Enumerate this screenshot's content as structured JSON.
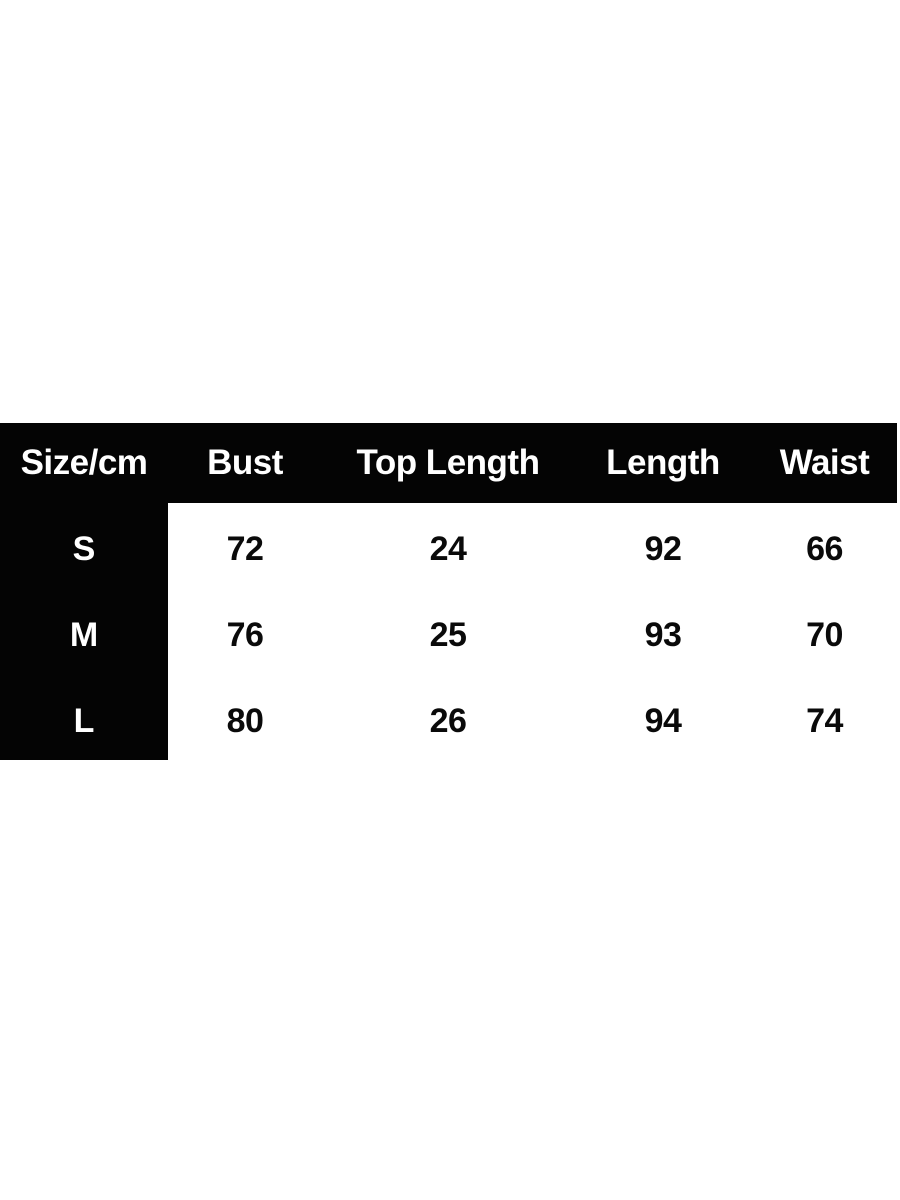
{
  "chart_data": {
    "type": "table",
    "columns": [
      "Size/cm",
      "Bust",
      "Top Length",
      "Length",
      "Waist"
    ],
    "rows": [
      {
        "label": "S",
        "values": [
          72,
          24,
          92,
          66
        ]
      },
      {
        "label": "M",
        "values": [
          76,
          25,
          93,
          70
        ]
      },
      {
        "label": "L",
        "values": [
          80,
          26,
          94,
          74
        ]
      }
    ],
    "unit_note": "cm",
    "layout": {
      "header_position": "top",
      "row_label_column": "left",
      "gridlines": "off"
    }
  },
  "colors": {
    "header_bg": "#040404",
    "header_text": "#ffffff",
    "cell_text": "#0a0a0a",
    "page_bg": "#ffffff"
  }
}
